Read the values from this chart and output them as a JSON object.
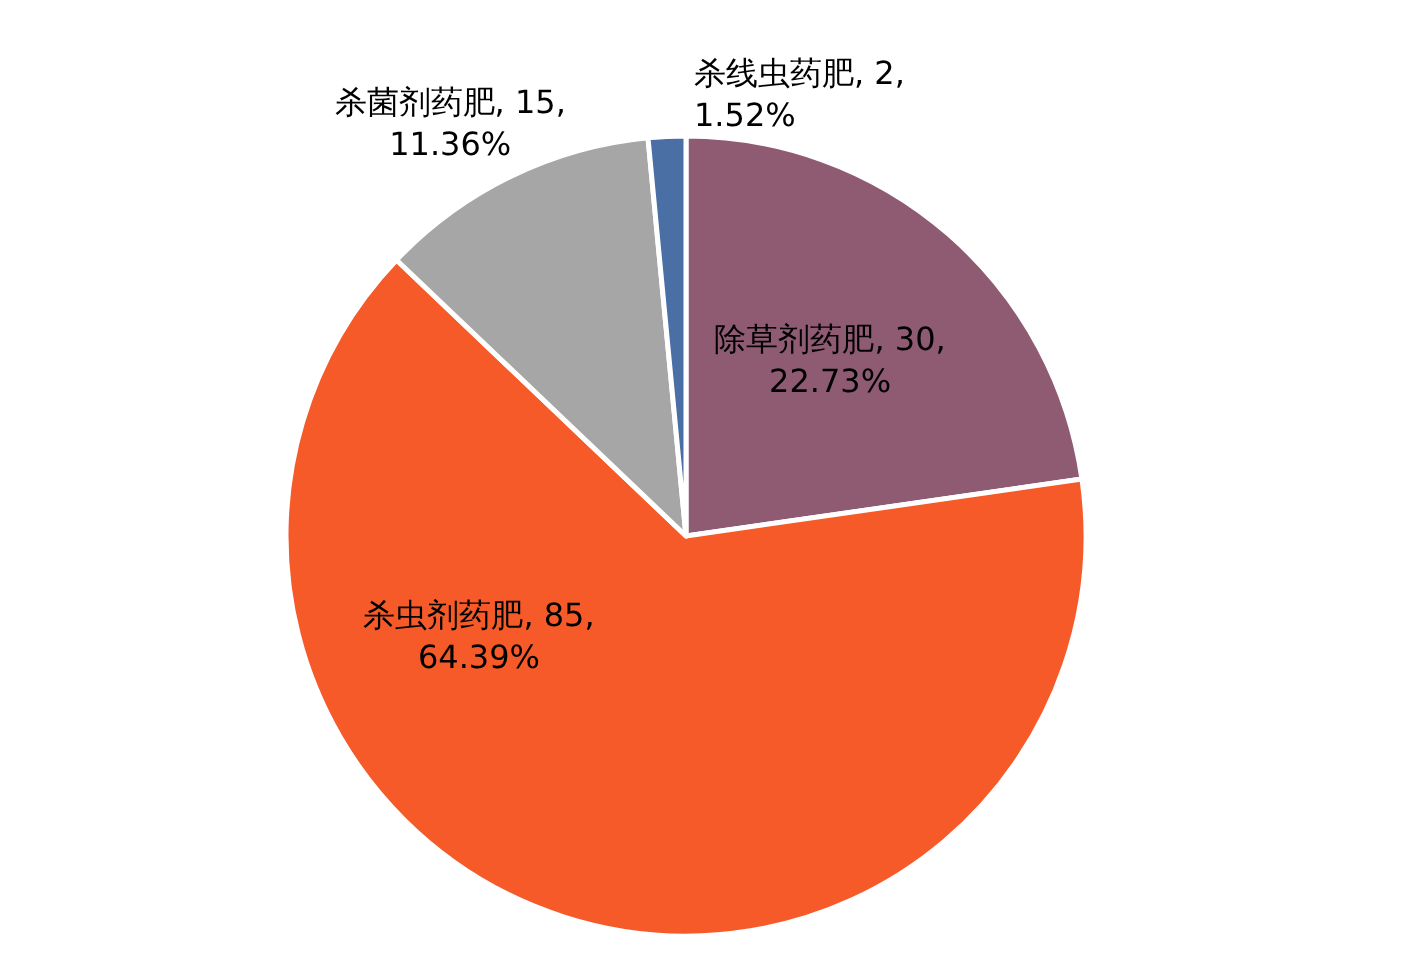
{
  "chart_data": {
    "type": "pie",
    "categories": [
      "除草剂药肥",
      "杀虫剂药肥",
      "杀菌剂药肥",
      "杀线虫药肥"
    ],
    "values": [
      30,
      85,
      15,
      2
    ],
    "colors": [
      "#8f5b73",
      "#f55a28",
      "#a6a6a6",
      "#4a6fa5"
    ],
    "value_labels": [
      "30, 22.73%",
      "85, 64.39%",
      "15, 11.36%",
      "2, 1.52%"
    ],
    "legend": false
  }
}
